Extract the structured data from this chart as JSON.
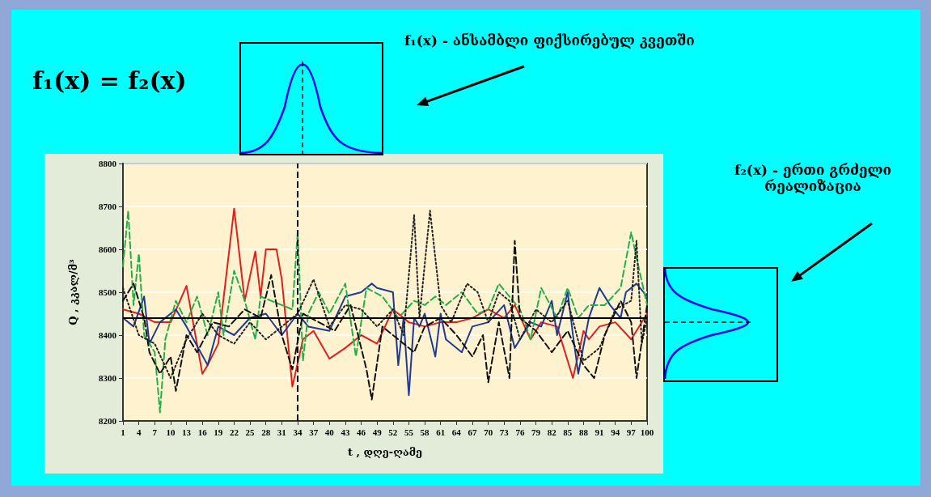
{
  "chart_data": {
    "type": "line",
    "xlabel": "t , დღე-ღამე",
    "ylabel": "Q , კკალ/მ³",
    "annotations": [
      "f₁(x) = f₂(x)",
      "f₁(x) - ანსამბლი ფიქსირებულ კვეთში",
      "f₂(x) - ერთი გრძელი რეალიზაცია"
    ],
    "xlim": [
      1,
      100
    ],
    "xticks": [
      1,
      4,
      7,
      10,
      13,
      16,
      19,
      22,
      25,
      28,
      31,
      34,
      37,
      40,
      43,
      46,
      49,
      52,
      55,
      58,
      61,
      64,
      67,
      70,
      73,
      76,
      79,
      82,
      85,
      88,
      91,
      94,
      97,
      100
    ],
    "ylim": [
      8200,
      8800
    ],
    "yticks": [
      8200,
      8300,
      8400,
      8500,
      8600,
      8700,
      8800
    ],
    "grid": "y",
    "marker": "none",
    "ref_lines": [
      {
        "axis": "y",
        "value": 8440,
        "label": null,
        "color": "#000000",
        "line_style": "solid"
      },
      {
        "axis": "x",
        "value": 34,
        "label": null,
        "color": "#000000",
        "line_style": "dashed"
      }
    ],
    "series": [
      {
        "color": "#e02020",
        "line_style": "solid",
        "x": [
          1,
          4,
          7,
          10,
          13,
          16,
          17,
          19,
          22,
          24,
          26,
          27,
          28,
          30,
          31,
          33,
          35,
          37,
          40,
          43,
          46,
          49,
          52,
          55,
          58,
          61,
          64,
          67,
          70,
          73,
          75,
          78,
          80,
          83,
          86,
          88,
          89,
          91,
          94,
          97,
          100
        ],
        "values": [
          8460,
          8450,
          8430,
          8430,
          8515,
          8310,
          8330,
          8380,
          8695,
          8480,
          8595,
          8490,
          8600,
          8600,
          8530,
          8280,
          8390,
          8410,
          8345,
          8370,
          8400,
          8380,
          8460,
          8430,
          8420,
          8430,
          8430,
          8440,
          8460,
          8440,
          8470,
          8390,
          8430,
          8420,
          8300,
          8410,
          8390,
          8420,
          8430,
          8390,
          8450
        ]
      },
      {
        "color": "#1f3a93",
        "line_style": "solid",
        "x": [
          1,
          3,
          5,
          6,
          8,
          11,
          13,
          17,
          19,
          22,
          25,
          28,
          31,
          34,
          36,
          40,
          43,
          46,
          48,
          49,
          52,
          53,
          54,
          55,
          56,
          57,
          58,
          60,
          61,
          62,
          65,
          67,
          70,
          73,
          75,
          78,
          80,
          82,
          83,
          85,
          86,
          87,
          89,
          91,
          93,
          95,
          96,
          98,
          100
        ],
        "values": [
          8440,
          8420,
          8490,
          8380,
          8430,
          8460,
          8420,
          8330,
          8420,
          8400,
          8440,
          8450,
          8400,
          8450,
          8420,
          8410,
          8490,
          8500,
          8520,
          8510,
          8500,
          8330,
          8440,
          8260,
          8440,
          8420,
          8450,
          8350,
          8450,
          8390,
          8360,
          8420,
          8430,
          8470,
          8370,
          8430,
          8420,
          8480,
          8400,
          8500,
          8400,
          8310,
          8440,
          8510,
          8470,
          8440,
          8500,
          8520,
          8490
        ]
      },
      {
        "color": "#22b04a",
        "line_style": "dashed",
        "x": [
          1,
          2,
          3,
          4,
          5,
          7,
          8,
          9,
          11,
          13,
          15,
          17,
          19,
          20,
          22,
          24,
          26,
          27,
          29,
          31,
          33,
          34,
          35,
          36,
          38,
          40,
          43,
          45,
          47,
          50,
          53,
          56,
          58,
          60,
          62,
          65,
          68,
          70,
          72,
          74,
          76,
          78,
          80,
          83,
          85,
          87,
          89,
          92,
          95,
          97,
          98,
          100
        ],
        "values": [
          8560,
          8690,
          8470,
          8590,
          8400,
          8360,
          8220,
          8390,
          8480,
          8430,
          8490,
          8400,
          8500,
          8400,
          8550,
          8480,
          8390,
          8490,
          8480,
          8470,
          8460,
          8640,
          8340,
          8450,
          8500,
          8450,
          8520,
          8350,
          8510,
          8490,
          8440,
          8480,
          8470,
          8490,
          8470,
          8500,
          8450,
          8460,
          8520,
          8490,
          8460,
          8390,
          8510,
          8440,
          8510,
          8440,
          8470,
          8470,
          8510,
          8640,
          8580,
          8470
        ]
      },
      {
        "color": "#222222",
        "line_style": "dotted",
        "x": [
          1,
          4,
          7,
          10,
          13,
          16,
          19,
          22,
          25,
          28,
          31,
          34,
          37,
          40,
          43,
          46,
          49,
          52,
          54,
          56,
          57,
          59,
          61,
          63,
          66,
          68,
          70,
          72,
          74,
          76,
          79,
          82,
          85,
          88,
          91,
          94,
          97,
          98,
          99,
          100
        ],
        "values": [
          8510,
          8400,
          8380,
          8300,
          8390,
          8450,
          8400,
          8380,
          8430,
          8390,
          8420,
          8450,
          8530,
          8420,
          8470,
          8460,
          8420,
          8460,
          8400,
          8680,
          8440,
          8690,
          8470,
          8430,
          8520,
          8500,
          8430,
          8500,
          8480,
          8390,
          8460,
          8430,
          8480,
          8340,
          8370,
          8460,
          8480,
          8620,
          8380,
          8440
        ]
      },
      {
        "color": "#111111",
        "line_style": "dashed",
        "x": [
          1,
          3,
          5,
          6,
          8,
          10,
          11,
          13,
          15,
          18,
          21,
          24,
          27,
          29,
          31,
          33,
          35,
          38,
          41,
          44,
          47,
          48,
          50,
          53,
          56,
          58,
          61,
          64,
          67,
          69,
          70,
          72,
          74,
          75,
          76,
          79,
          82,
          85,
          88,
          90,
          92,
          95,
          97,
          98,
          100
        ],
        "values": [
          8480,
          8520,
          8440,
          8360,
          8310,
          8350,
          8270,
          8400,
          8360,
          8430,
          8420,
          8460,
          8440,
          8540,
          8400,
          8320,
          8450,
          8430,
          8410,
          8470,
          8320,
          8250,
          8420,
          8390,
          8360,
          8420,
          8440,
          8400,
          8350,
          8400,
          8290,
          8430,
          8300,
          8620,
          8440,
          8410,
          8360,
          8410,
          8330,
          8300,
          8400,
          8480,
          8430,
          8300,
          8470
        ]
      }
    ]
  }
}
